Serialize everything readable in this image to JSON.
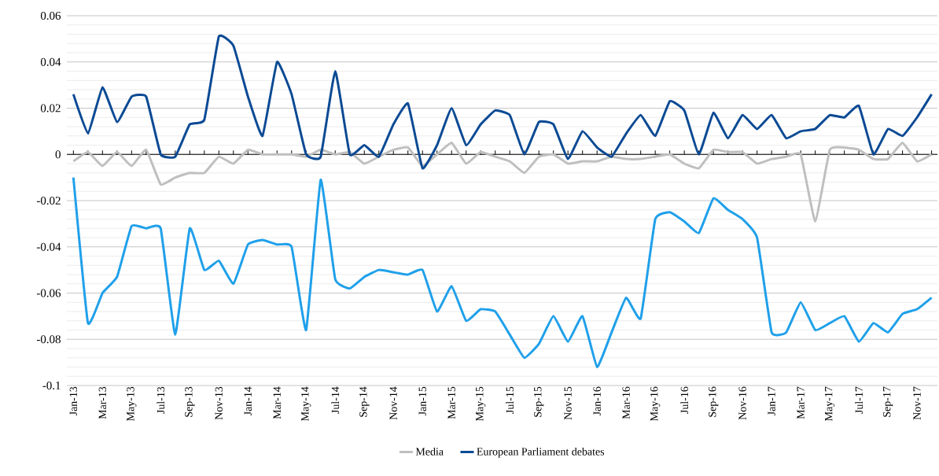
{
  "chart_data": {
    "type": "line",
    "categories": [
      "Jan-13",
      null,
      "Mar-13",
      null,
      "May-13",
      null,
      "Jul-13",
      null,
      "Sep-13",
      null,
      "Nov-13",
      null,
      "Jan-14",
      null,
      "Mar-14",
      null,
      "May-14",
      null,
      "Jul-14",
      null,
      "Sep-14",
      null,
      "Nov-14",
      null,
      "Jan-15",
      null,
      "Mar-15",
      null,
      "May-15",
      null,
      "Jul-15",
      null,
      "Sep-15",
      null,
      "Nov-15",
      null,
      "Jan-16",
      null,
      "Mar-16",
      null,
      "May-16",
      null,
      "Jul-16",
      null,
      "Sep-16",
      null,
      "Nov-16",
      null,
      "Jan-17",
      null,
      "Mar-17",
      null,
      "May-17",
      null,
      "Jul-17",
      null,
      "Sep-17",
      null,
      "Nov-17",
      null
    ],
    "series": [
      {
        "name": "Media",
        "color": "#bfbfbf",
        "values": [
          -0.003,
          0.001,
          -0.005,
          0.001,
          -0.005,
          0.002,
          -0.013,
          -0.01,
          -0.008,
          -0.008,
          -0.001,
          -0.004,
          0.002,
          0.0,
          0.0,
          0.0,
          -0.001,
          0.002,
          0.0,
          0.001,
          -0.004,
          -0.001,
          0.002,
          0.003,
          -0.005,
          0.0,
          0.005,
          -0.004,
          0.001,
          -0.001,
          -0.003,
          -0.008,
          -0.001,
          0.0,
          -0.004,
          -0.003,
          -0.003,
          -0.001,
          -0.002,
          -0.002,
          -0.001,
          0.0,
          -0.004,
          -0.006,
          0.002,
          0.001,
          0.001,
          -0.004,
          -0.002,
          -0.001,
          0.0,
          -0.029,
          0.002,
          0.003,
          0.002,
          -0.002,
          -0.002,
          0.005,
          -0.003,
          0.0
        ]
      },
      {
        "color": "#1fa0ea",
        "values": [
          -0.01,
          -0.073,
          -0.06,
          -0.053,
          -0.031,
          -0.032,
          -0.032,
          -0.078,
          -0.032,
          -0.05,
          -0.046,
          -0.056,
          -0.039,
          -0.037,
          -0.039,
          -0.04,
          -0.076,
          -0.011,
          -0.054,
          -0.058,
          -0.053,
          -0.05,
          -0.051,
          -0.052,
          -0.05,
          -0.068,
          -0.057,
          -0.072,
          -0.067,
          -0.068,
          -0.078,
          -0.088,
          -0.082,
          -0.07,
          -0.081,
          -0.07,
          -0.092,
          -0.077,
          -0.062,
          -0.071,
          -0.028,
          -0.025,
          -0.029,
          -0.034,
          -0.019,
          -0.024,
          -0.028,
          -0.036,
          -0.077,
          -0.077,
          -0.064,
          -0.076,
          -0.073,
          -0.07,
          -0.081,
          -0.073,
          -0.077,
          -0.069,
          -0.067,
          -0.062
        ]
      },
      {
        "name": "European Parliament debates",
        "color": "#0b4a94",
        "values": [
          0.026,
          0.009,
          0.029,
          0.014,
          0.025,
          0.025,
          0.0,
          -0.001,
          0.013,
          0.015,
          0.051,
          0.047,
          0.025,
          0.008,
          0.04,
          0.026,
          0.0,
          -0.001,
          0.036,
          0.0,
          0.004,
          -0.001,
          0.013,
          0.022,
          -0.006,
          0.004,
          0.02,
          0.004,
          0.013,
          0.019,
          0.017,
          0.0,
          0.014,
          0.013,
          -0.002,
          0.01,
          0.003,
          -0.001,
          0.009,
          0.017,
          0.008,
          0.023,
          0.019,
          0.0,
          0.018,
          0.007,
          0.017,
          0.011,
          0.017,
          0.007,
          0.01,
          0.011,
          0.017,
          0.016,
          0.021,
          0.0,
          0.011,
          0.008,
          0.016,
          0.026
        ]
      }
    ],
    "ylim": [
      -0.1,
      0.06
    ],
    "yticks": [
      -0.1,
      -0.08,
      -0.06,
      -0.04,
      -0.02,
      0,
      0.02,
      0.04,
      0.06
    ],
    "grid": "y",
    "legend": "bottom"
  }
}
